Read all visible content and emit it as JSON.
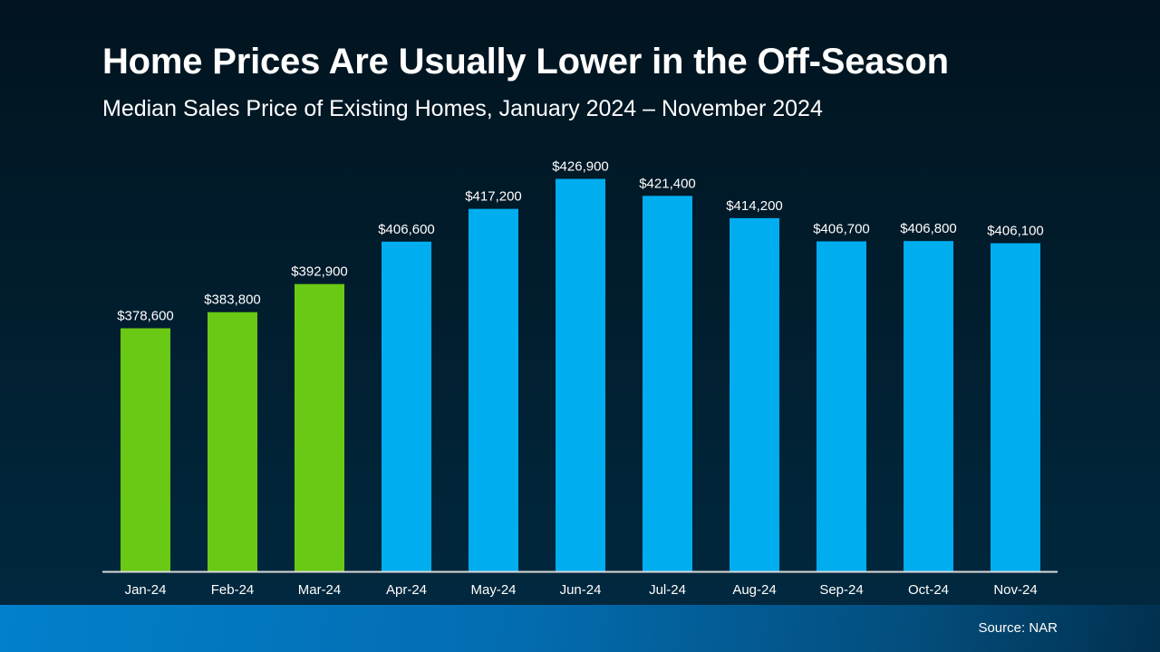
{
  "chart_data": {
    "type": "bar",
    "title": "Home Prices Are Usually Lower in the Off-Season",
    "subtitle": "Median Sales Price of Existing Homes, January 2024 – November 2024",
    "categories": [
      "Jan-24",
      "Feb-24",
      "Mar-24",
      "Apr-24",
      "May-24",
      "Jun-24",
      "Jul-24",
      "Aug-24",
      "Sep-24",
      "Oct-24",
      "Nov-24"
    ],
    "values": [
      378600,
      383800,
      392900,
      406600,
      417200,
      426900,
      421400,
      414200,
      406700,
      406800,
      406100
    ],
    "data_labels": [
      "$378,600",
      "$383,800",
      "$392,900",
      "$406,600",
      "$417,200",
      "$426,900",
      "$421,400",
      "$414,200",
      "$406,700",
      "$406,800",
      "$406,100"
    ],
    "bar_colors": [
      "#6ac914",
      "#6ac914",
      "#6ac914",
      "#00adef",
      "#00adef",
      "#00adef",
      "#00adef",
      "#00adef",
      "#00adef",
      "#00adef",
      "#00adef"
    ],
    "ylim": [
      300000,
      440000
    ],
    "grid": false,
    "xlabel": "",
    "ylabel": ""
  },
  "source": "Source: NAR"
}
